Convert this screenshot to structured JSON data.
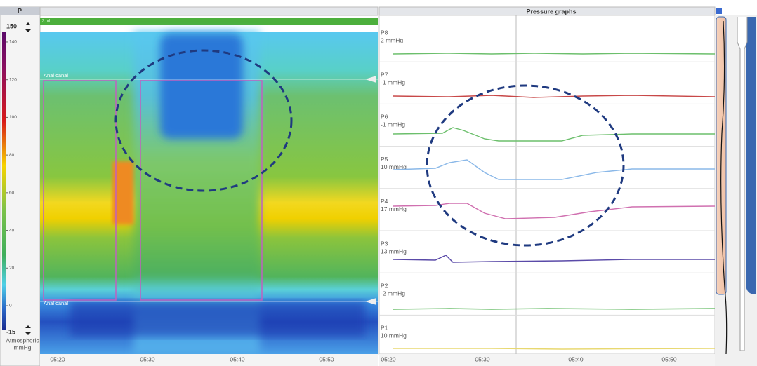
{
  "scale": {
    "header": "P",
    "max": "150",
    "min": "-15",
    "unit_line1": "Atmospheric",
    "unit_line2": "mmHg",
    "ticks": [
      140,
      120,
      100,
      80,
      60,
      40,
      20,
      0
    ]
  },
  "heatmap": {
    "bar_label": "3 ml",
    "markers": [
      "Anal canal",
      "Anal canal"
    ],
    "time_ticks": [
      "05:20",
      "05:30",
      "05:40",
      "05:50"
    ]
  },
  "graphs": {
    "title": "Pressure graphs",
    "channels": [
      {
        "name": "P8",
        "value": "2 mmHg"
      },
      {
        "name": "P7",
        "value": "-1 mmHg"
      },
      {
        "name": "P6",
        "value": "-1 mmHg"
      },
      {
        "name": "P5",
        "value": "10 mmHg"
      },
      {
        "name": "P4",
        "value": "17 mmHg"
      },
      {
        "name": "P3",
        "value": "13 mmHg"
      },
      {
        "name": "P2",
        "value": "-2 mmHg"
      },
      {
        "name": "P1",
        "value": "10 mmHg"
      }
    ],
    "time_ticks": [
      "05:20",
      "05:30",
      "05:40",
      "05:50"
    ]
  }
}
